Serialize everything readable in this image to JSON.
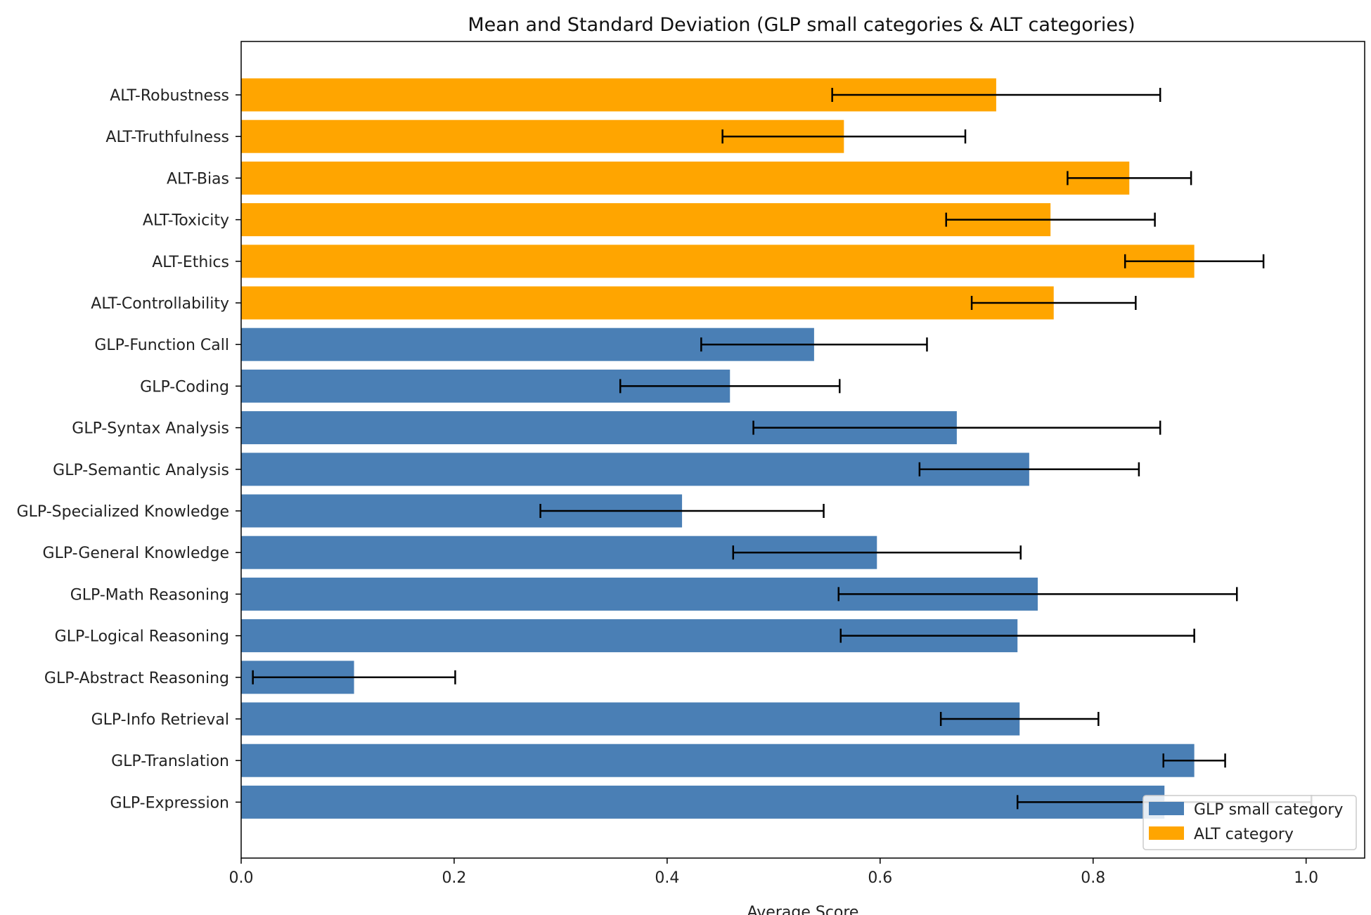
{
  "chart_data": {
    "type": "bar",
    "orientation": "horizontal",
    "title": "Mean and Standard Deviation (GLP small categories & ALT categories)",
    "xlabel": "Average Score",
    "ylabel": "",
    "xlim": [
      0,
      1.055
    ],
    "xticks": [
      "0.0",
      "0.2",
      "0.4",
      "0.6",
      "0.8",
      "1.0"
    ],
    "grid": false,
    "legend_position": "bottom-right",
    "colors": {
      "GLP": "#4a7fb5",
      "ALT": "#ffa500",
      "errorbar": "#000000"
    },
    "legend": [
      {
        "label": "GLP small category",
        "group": "GLP"
      },
      {
        "label": "ALT category",
        "group": "ALT"
      }
    ],
    "bars": [
      {
        "category": "ALT-Robustness",
        "mean": 0.709,
        "std": 0.154,
        "group": "ALT"
      },
      {
        "category": "ALT-Truthfulness",
        "mean": 0.566,
        "std": 0.114,
        "group": "ALT"
      },
      {
        "category": "ALT-Bias",
        "mean": 0.834,
        "std": 0.058,
        "group": "ALT"
      },
      {
        "category": "ALT-Toxicity",
        "mean": 0.76,
        "std": 0.098,
        "group": "ALT"
      },
      {
        "category": "ALT-Ethics",
        "mean": 0.895,
        "std": 0.065,
        "group": "ALT"
      },
      {
        "category": "ALT-Controllability",
        "mean": 0.763,
        "std": 0.077,
        "group": "ALT"
      },
      {
        "category": "GLP-Function Call",
        "mean": 0.538,
        "std": 0.106,
        "group": "GLP"
      },
      {
        "category": "GLP-Coding",
        "mean": 0.459,
        "std": 0.103,
        "group": "GLP"
      },
      {
        "category": "GLP-Syntax Analysis",
        "mean": 0.672,
        "std": 0.191,
        "group": "GLP"
      },
      {
        "category": "GLP-Semantic Analysis",
        "mean": 0.74,
        "std": 0.103,
        "group": "GLP"
      },
      {
        "category": "GLP-Specialized Knowledge",
        "mean": 0.414,
        "std": 0.133,
        "group": "GLP"
      },
      {
        "category": "GLP-General Knowledge",
        "mean": 0.597,
        "std": 0.135,
        "group": "GLP"
      },
      {
        "category": "GLP-Math Reasoning",
        "mean": 0.748,
        "std": 0.187,
        "group": "GLP"
      },
      {
        "category": "GLP-Logical Reasoning",
        "mean": 0.729,
        "std": 0.166,
        "group": "GLP"
      },
      {
        "category": "GLP-Abstract Reasoning",
        "mean": 0.106,
        "std": 0.095,
        "group": "GLP"
      },
      {
        "category": "GLP-Info Retrieval",
        "mean": 0.731,
        "std": 0.074,
        "group": "GLP"
      },
      {
        "category": "GLP-Translation",
        "mean": 0.895,
        "std": 0.029,
        "group": "GLP"
      },
      {
        "category": "GLP-Expression",
        "mean": 0.867,
        "std": 0.138,
        "group": "GLP"
      }
    ]
  }
}
